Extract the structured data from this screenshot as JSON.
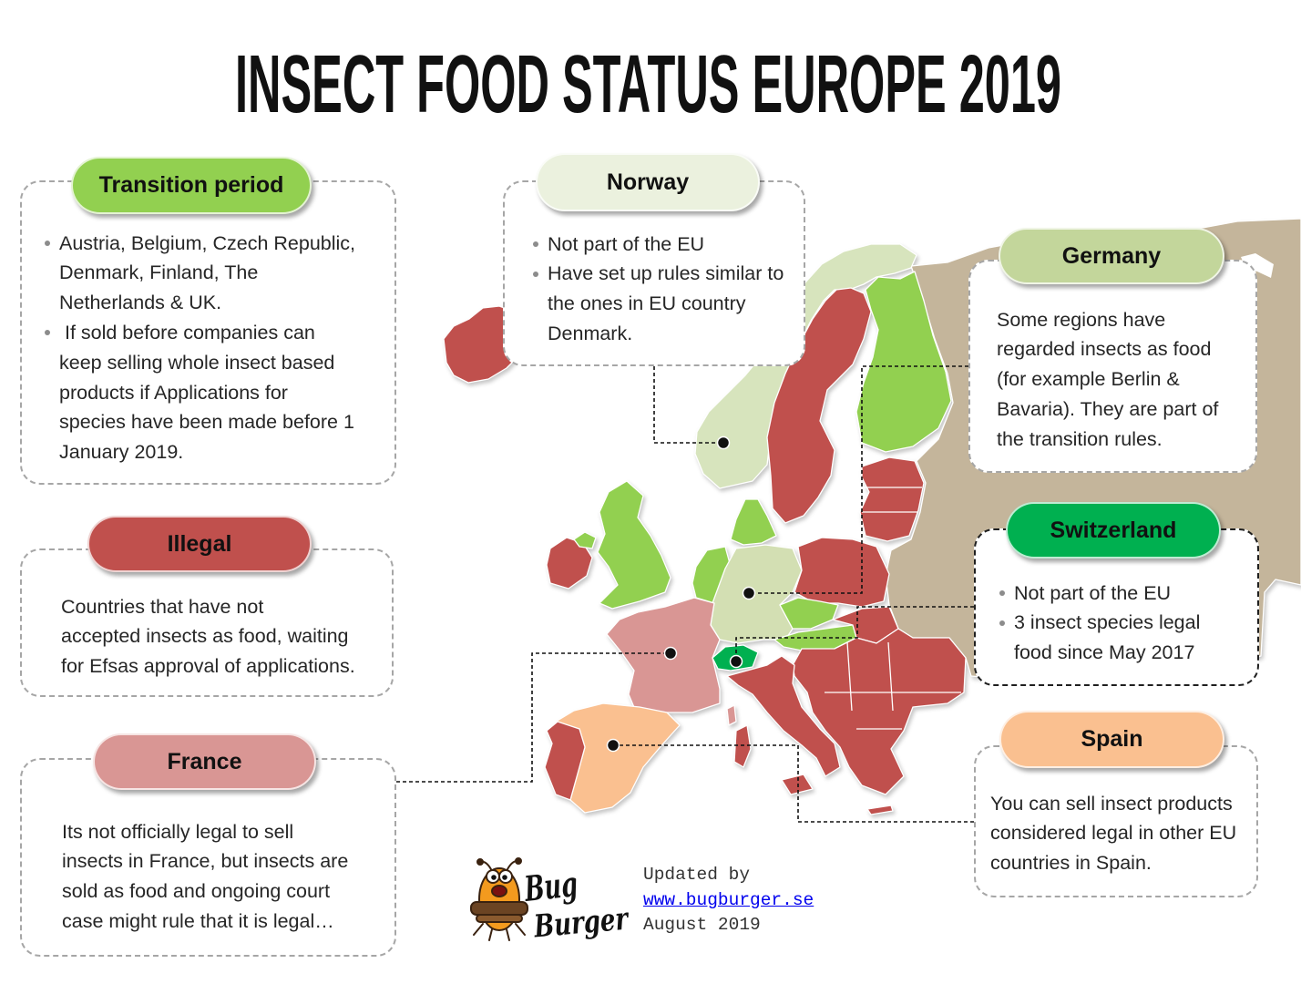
{
  "title": "INSECT FOOD STATUS EUROPE 2019",
  "colors": {
    "transition": "#92d050",
    "illegal": "#c0504d",
    "france": "#d99694",
    "norway": "#d7e4bd",
    "norway_label": "#ebf1de",
    "germany": "#d3dfb3",
    "germany_label": "#c3d69b",
    "switzerland": "#00b050",
    "spain": "#fac090",
    "other": "#c4b59b"
  },
  "panels": {
    "transition": {
      "label": "Transition period",
      "bullets": [
        {
          "lines": [
            "Austria, Belgium, Czech Republic,",
            "Denmark, Finland, The",
            "Netherlands & UK."
          ]
        },
        {
          "lines": [
            " If sold before companies can",
            "keep selling whole insect based",
            "products if Applications for",
            "species have been made before 1",
            "January 2019."
          ]
        }
      ]
    },
    "illegal": {
      "label": "Illegal",
      "lines": [
        "Countries that have not",
        "accepted insects as food, waiting",
        "for Efsas approval of applications."
      ]
    },
    "france": {
      "label": "France",
      "lines": [
        "Its not officially legal to sell",
        "insects in France, but insects are",
        "sold as food and ongoing court",
        "case might rule that it is legal…"
      ]
    },
    "norway": {
      "label": "Norway",
      "bullets": [
        {
          "lines": [
            "Not part of the EU"
          ]
        },
        {
          "lines": [
            "Have set up rules similar to",
            "the ones in EU country",
            "Denmark."
          ]
        }
      ]
    },
    "germany": {
      "label": "Germany",
      "lines": [
        "Some regions have",
        "regarded insects as food",
        "(for example Berlin &",
        "Bavaria). They are part of",
        "the transition rules."
      ]
    },
    "switzerland": {
      "label": "Switzerland",
      "bullets": [
        {
          "lines": [
            "Not part of the EU"
          ]
        },
        {
          "lines": [
            "3 insect species legal",
            "food since May 2017"
          ]
        }
      ]
    },
    "spain": {
      "label": "Spain",
      "lines": [
        "You can sell insect products",
        "considered legal in other EU",
        "countries in Spain."
      ]
    }
  },
  "footer": {
    "updated_by": "Updated by",
    "link": "www.bugburger.se",
    "date": "August 2019"
  },
  "logo": {
    "line1": "Bug",
    "line2": "Burger"
  }
}
